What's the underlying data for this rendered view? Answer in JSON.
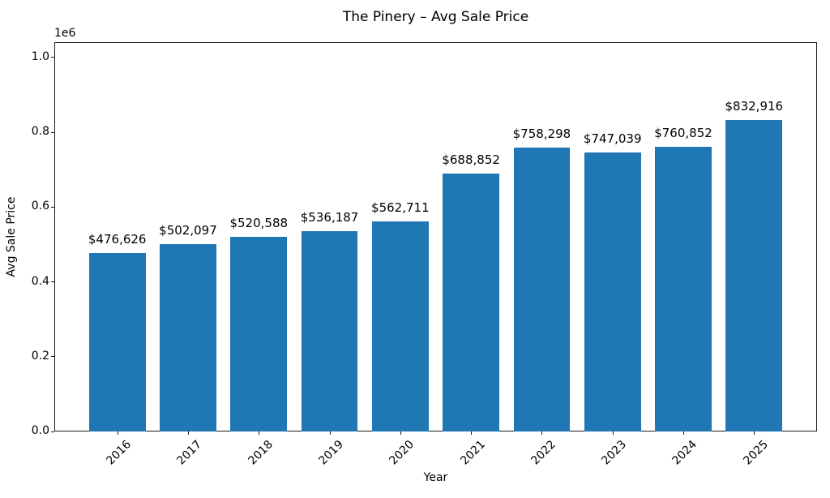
{
  "figure": {
    "title": "The Pinery – Avg Sale Price"
  },
  "chart_data": {
    "type": "bar",
    "title": "The Pinery – Avg Sale Price",
    "xlabel": "Year",
    "ylabel": "Avg Sale Price",
    "offset_text": "1e6",
    "categories": [
      "2016",
      "2017",
      "2018",
      "2019",
      "2020",
      "2021",
      "2022",
      "2023",
      "2024",
      "2025"
    ],
    "values": [
      476626,
      502097,
      520588,
      536187,
      562711,
      688852,
      758298,
      747039,
      760852,
      832916
    ],
    "bar_labels": [
      "$476,626",
      "$502,097",
      "$520,588",
      "$536,187",
      "$562,711",
      "$688,852",
      "$758,298",
      "$747,039",
      "$760,852",
      "$832,916"
    ],
    "ytick_values": [
      0,
      200000,
      400000,
      600000,
      800000,
      1000000
    ],
    "ytick_labels": [
      "0.0",
      "0.2",
      "0.4",
      "0.6",
      "0.8",
      "1.0"
    ],
    "ylim": [
      0,
      1041145
    ],
    "xlim": [
      -0.89,
      9.89
    ],
    "bar_width_units": 0.8,
    "bar_color": "#1f77b4",
    "grid": false,
    "legend": null
  }
}
